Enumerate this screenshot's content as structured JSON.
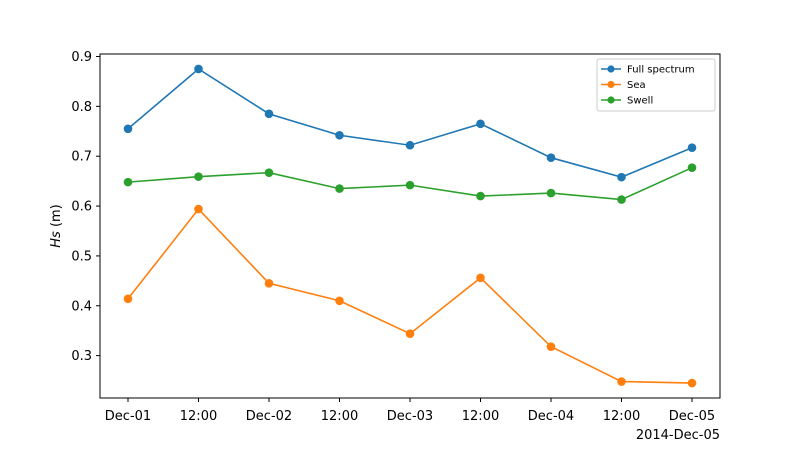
{
  "chart_data": {
    "type": "line",
    "ylabel_italic": "Hs",
    "ylabel_rest": " (m)",
    "x_ticks": [
      "Dec-01",
      "12:00",
      "Dec-02",
      "12:00",
      "Dec-03",
      "12:00",
      "Dec-04",
      "12:00",
      "Dec-05"
    ],
    "x_offset_label": "2014-Dec-05",
    "x": [
      "2014-12-01 00:00",
      "2014-12-01 12:00",
      "2014-12-02 00:00",
      "2014-12-02 12:00",
      "2014-12-03 00:00",
      "2014-12-03 12:00",
      "2014-12-04 00:00",
      "2014-12-04 12:00",
      "2014-12-05 00:00"
    ],
    "ylim": [
      0.215,
      0.905
    ],
    "y_ticks": [
      "0.3",
      "0.4",
      "0.5",
      "0.6",
      "0.7",
      "0.8",
      "0.9"
    ],
    "y_tick_values": [
      0.3,
      0.4,
      0.5,
      0.6,
      0.7,
      0.8,
      0.9
    ],
    "grid": false,
    "legend_position": "top-right",
    "series": [
      {
        "name": "Full spectrum",
        "color": "#1f77b4",
        "values": [
          0.755,
          0.875,
          0.785,
          0.742,
          0.722,
          0.765,
          0.697,
          0.658,
          0.717
        ]
      },
      {
        "name": "Sea",
        "color": "#ff7f0e",
        "values": [
          0.414,
          0.594,
          0.445,
          0.41,
          0.344,
          0.456,
          0.318,
          0.248,
          0.245
        ]
      },
      {
        "name": "Swell",
        "color": "#2ca02c",
        "values": [
          0.648,
          0.659,
          0.667,
          0.635,
          0.642,
          0.62,
          0.626,
          0.613,
          0.677
        ]
      }
    ]
  }
}
